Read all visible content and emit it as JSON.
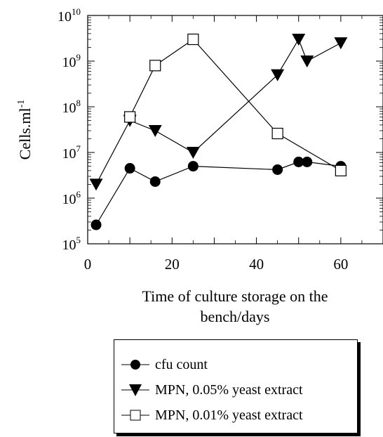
{
  "chart_data": {
    "type": "line",
    "ylabel": "Cells.ml",
    "ylabel_sup": "-1",
    "xlabel_line1": "Time of culture storage on the",
    "xlabel_line2": "bench/days",
    "xlim": [
      0,
      70
    ],
    "ylim": [
      100000,
      10000000000
    ],
    "yscale": "log",
    "grid": false,
    "legend_position": "bottom",
    "x_ticks": [
      {
        "value": 0,
        "label": "0"
      },
      {
        "value": 20,
        "label": "20"
      },
      {
        "value": 40,
        "label": "40"
      },
      {
        "value": 60,
        "label": "60"
      }
    ],
    "y_ticks": [
      {
        "value": 100000,
        "base": "10",
        "exp": "5"
      },
      {
        "value": 1000000,
        "base": "10",
        "exp": "6"
      },
      {
        "value": 10000000,
        "base": "10",
        "exp": "7"
      },
      {
        "value": 100000000,
        "base": "10",
        "exp": "8"
      },
      {
        "value": 1000000000,
        "base": "10",
        "exp": "9"
      },
      {
        "value": 10000000000,
        "base": "10",
        "exp": "10"
      }
    ],
    "series": [
      {
        "name": "cfu count",
        "marker": "circle",
        "points": [
          [
            2,
            260000
          ],
          [
            10,
            4500000
          ],
          [
            16,
            2300000
          ],
          [
            25,
            5000000
          ],
          [
            45,
            4200000
          ],
          [
            50,
            6200000
          ],
          [
            52,
            6200000
          ],
          [
            60,
            5000000
          ]
        ]
      },
      {
        "name": "MPN, 0.05% yeast extract",
        "marker": "triangle-down",
        "points": [
          [
            2,
            2000000
          ],
          [
            10,
            50000000
          ],
          [
            16,
            30000000
          ],
          [
            25,
            10000000
          ],
          [
            45,
            500000000
          ],
          [
            50,
            3000000000
          ],
          [
            52,
            1000000000
          ],
          [
            60,
            2500000000
          ]
        ]
      },
      {
        "name": "MPN, 0.01% yeast extract",
        "marker": "square-open",
        "points": [
          [
            10,
            60000000
          ],
          [
            16,
            800000000
          ],
          [
            25,
            3000000000
          ],
          [
            45,
            26000000
          ],
          [
            60,
            4000000
          ]
        ]
      }
    ]
  },
  "colors": {
    "ink": "#000000",
    "background": "#ffffff"
  },
  "legend": {
    "items": [
      {
        "label": "cfu count",
        "marker": "circle"
      },
      {
        "label": "MPN, 0.05% yeast extract",
        "marker": "triangle-down"
      },
      {
        "label": "MPN, 0.01% yeast extract",
        "marker": "square-open"
      }
    ]
  }
}
